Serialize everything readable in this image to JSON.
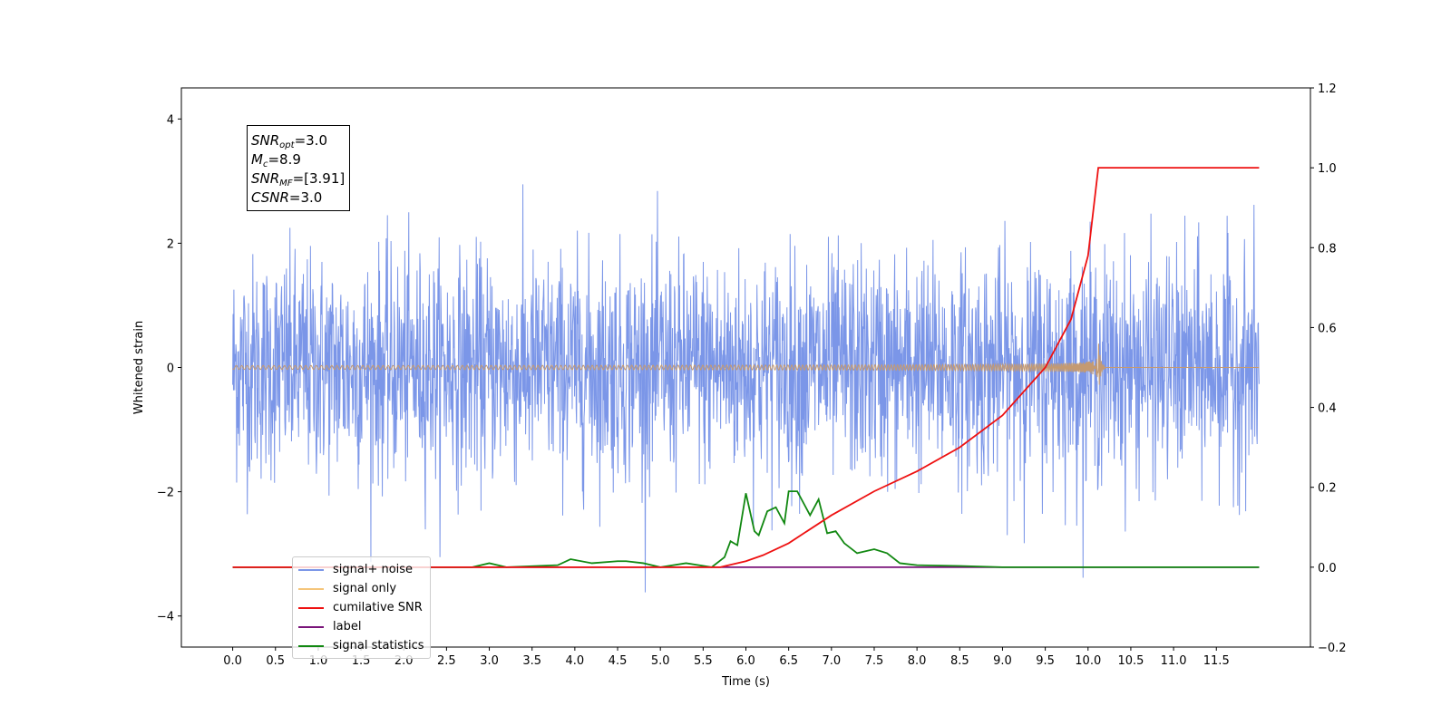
{
  "chart_data": {
    "type": "line",
    "xlabel": "Time (s)",
    "ylabel": "Whitened strain",
    "xlim": [
      -0.6,
      12.6
    ],
    "ylim": [
      -4.5,
      4.5
    ],
    "ylim_right": [
      -0.2,
      1.2
    ],
    "x_ticks": [
      "0.0",
      "0.5",
      "1.0",
      "1.5",
      "2.0",
      "2.5",
      "3.0",
      "3.5",
      "4.0",
      "4.5",
      "5.0",
      "5.5",
      "6.0",
      "6.5",
      "7.0",
      "7.5",
      "8.0",
      "8.5",
      "9.0",
      "9.5",
      "10.0",
      "10.5",
      "11.0",
      "11.5"
    ],
    "y_ticks": [
      "4",
      "2",
      "0",
      "−2",
      "−4"
    ],
    "y_ticks_right": [
      "1.2",
      "1.0",
      "0.8",
      "0.6",
      "0.4",
      "0.2",
      "0.0",
      "−0.2"
    ],
    "grid": false,
    "legend_position": "lower-left",
    "annotation": {
      "snr_opt_label": "SNR",
      "snr_opt_sub": "opt",
      "snr_opt_value": "=3.0",
      "mc_label": "M",
      "mc_sub": "c",
      "mc_value": "=8.9",
      "snr_mf_label": "SNR",
      "snr_mf_sub": "MF",
      "snr_mf_value": "=[3.91]",
      "csnr_label": "CSNR",
      "csnr_value": "=3.0"
    },
    "series": [
      {
        "name": "signal+ noise",
        "color": "#7b96e8",
        "axis": "left",
        "kind": "noise",
        "sigma": 0.9,
        "x_start": 0.0,
        "x_end": 12.0
      },
      {
        "name": "signal only",
        "color": "#f5c57a",
        "axis": "left",
        "kind": "chirp",
        "merger_time": 10.12,
        "peak_amplitude": 0.45
      },
      {
        "name": "cumilative SNR",
        "color": "#ee1111",
        "axis": "right",
        "x": [
          0.0,
          5.7,
          5.8,
          6.0,
          6.2,
          6.5,
          7.0,
          7.5,
          8.0,
          8.5,
          9.0,
          9.5,
          9.8,
          10.0,
          10.12,
          10.2,
          12.0
        ],
        "y": [
          0.0,
          0.0,
          0.005,
          0.015,
          0.03,
          0.06,
          0.13,
          0.19,
          0.24,
          0.3,
          0.38,
          0.5,
          0.62,
          0.78,
          1.0,
          1.0,
          1.0
        ]
      },
      {
        "name": "label",
        "color": "#7a147a",
        "axis": "right",
        "x": [
          0.0,
          12.0
        ],
        "y": [
          0.0,
          0.0
        ]
      },
      {
        "name": "signal statistics",
        "color": "#118811",
        "axis": "right",
        "x": [
          0.0,
          2.8,
          3.0,
          3.2,
          3.8,
          3.95,
          4.2,
          4.5,
          4.6,
          4.8,
          5.0,
          5.3,
          5.6,
          5.75,
          5.82,
          5.9,
          6.0,
          6.1,
          6.15,
          6.25,
          6.35,
          6.45,
          6.5,
          6.6,
          6.75,
          6.85,
          6.95,
          7.05,
          7.15,
          7.3,
          7.5,
          7.65,
          7.8,
          8.0,
          8.5,
          9.0,
          12.0
        ],
        "y": [
          0.0,
          0.0,
          0.01,
          0.0,
          0.005,
          0.02,
          0.01,
          0.015,
          0.015,
          0.01,
          0.0,
          0.01,
          0.0,
          0.025,
          0.065,
          0.055,
          0.185,
          0.09,
          0.08,
          0.14,
          0.15,
          0.11,
          0.19,
          0.19,
          0.13,
          0.17,
          0.085,
          0.09,
          0.06,
          0.035,
          0.045,
          0.035,
          0.01,
          0.005,
          0.003,
          0.0,
          0.0
        ]
      }
    ]
  }
}
